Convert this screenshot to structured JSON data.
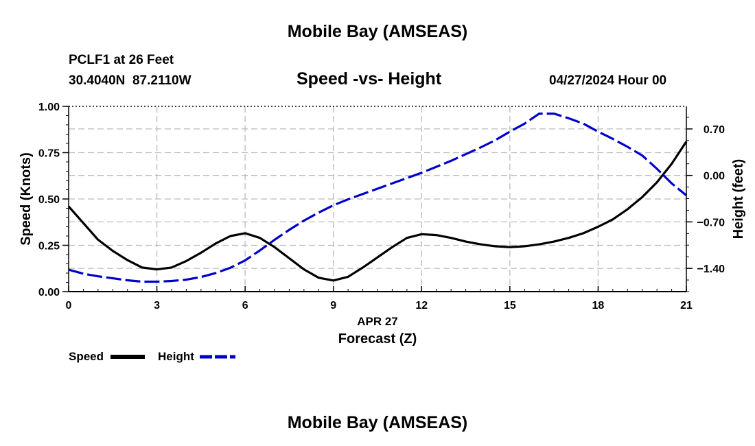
{
  "header": {
    "title": "Mobile Bay (AMSEAS)",
    "station": "PCLF1 at 26 Feet",
    "coords": "30.4040N  87.2110W",
    "subtitle": "Speed -vs- Height",
    "datetime": "04/27/2024 Hour 00"
  },
  "footer": {
    "title": "Mobile Bay (AMSEAS)"
  },
  "legend": {
    "items": [
      {
        "label": "Speed",
        "color": "#000000",
        "style": "solid"
      },
      {
        "label": "Height",
        "color": "#0000cc",
        "style": "dashed"
      }
    ]
  },
  "chart_data": {
    "type": "line",
    "xlabel": "Forecast (Z)",
    "xlabel_date": "APR 27",
    "ylabel_left": "Speed (Knots)",
    "ylabel_right": "Height (feet)",
    "xlim": [
      0,
      21
    ],
    "ylim_left": [
      0,
      1.0
    ],
    "ylim_right": [
      -1.75,
      1.04
    ],
    "x_ticks": [
      0,
      3,
      6,
      9,
      12,
      15,
      18,
      21
    ],
    "y_ticks_left": [
      "0.00",
      "0.25",
      "0.50",
      "0.75",
      "1.00"
    ],
    "y_ticks_left_values": [
      0,
      0.25,
      0.5,
      0.75,
      1.0
    ],
    "y_ticks_right": [
      "−1.40",
      "−0.70",
      "0.00",
      "0.70"
    ],
    "y_ticks_right_values": [
      -1.4,
      -0.7,
      0.0,
      0.7
    ],
    "grid": true,
    "series": [
      {
        "name": "Speed",
        "axis": "left",
        "color": "#000000",
        "x": [
          0,
          0.5,
          1,
          1.5,
          2,
          2.5,
          3,
          3.5,
          4,
          4.5,
          5,
          5.5,
          6,
          6.5,
          7,
          7.5,
          8,
          8.5,
          9,
          9.5,
          10,
          10.5,
          11,
          11.5,
          12,
          12.5,
          13,
          13.5,
          14,
          14.5,
          15,
          15.5,
          16,
          16.5,
          17,
          17.5,
          18,
          18.5,
          19,
          19.5,
          20,
          20.5,
          21
        ],
        "values": [
          0.46,
          0.37,
          0.28,
          0.22,
          0.17,
          0.13,
          0.12,
          0.13,
          0.165,
          0.21,
          0.26,
          0.3,
          0.315,
          0.29,
          0.24,
          0.18,
          0.12,
          0.075,
          0.06,
          0.08,
          0.13,
          0.185,
          0.24,
          0.29,
          0.31,
          0.305,
          0.29,
          0.27,
          0.255,
          0.245,
          0.24,
          0.245,
          0.255,
          0.27,
          0.29,
          0.315,
          0.35,
          0.39,
          0.445,
          0.51,
          0.59,
          0.69,
          0.81
        ]
      },
      {
        "name": "Height",
        "axis": "right",
        "color": "#0000cc",
        "x": [
          0,
          0.5,
          1,
          1.5,
          2,
          2.5,
          3,
          3.5,
          4,
          4.5,
          5,
          5.5,
          6,
          6.5,
          7,
          7.5,
          8,
          8.5,
          9,
          9.5,
          10,
          10.5,
          11,
          11.5,
          12,
          12.5,
          13,
          13.5,
          14,
          14.5,
          15,
          15.5,
          16,
          16.5,
          17,
          17.5,
          18,
          18.5,
          19,
          19.5,
          20,
          20.5,
          21
        ],
        "values": [
          -1.42,
          -1.48,
          -1.52,
          -1.55,
          -1.58,
          -1.6,
          -1.6,
          -1.59,
          -1.57,
          -1.53,
          -1.47,
          -1.39,
          -1.28,
          -1.13,
          -0.97,
          -0.82,
          -0.68,
          -0.56,
          -0.45,
          -0.36,
          -0.28,
          -0.2,
          -0.12,
          -0.04,
          0.04,
          0.13,
          0.22,
          0.32,
          0.42,
          0.53,
          0.66,
          0.78,
          0.93,
          0.93,
          0.86,
          0.78,
          0.66,
          0.55,
          0.43,
          0.3,
          0.1,
          -0.12,
          -0.3
        ]
      }
    ]
  }
}
